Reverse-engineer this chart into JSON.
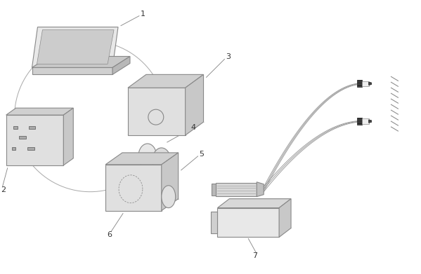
{
  "bg_color": "#ffffff",
  "line_color": "#888888",
  "dark_color": "#555555",
  "label_color": "#333333",
  "fig_width": 5.99,
  "fig_height": 3.91,
  "dpi": 100
}
